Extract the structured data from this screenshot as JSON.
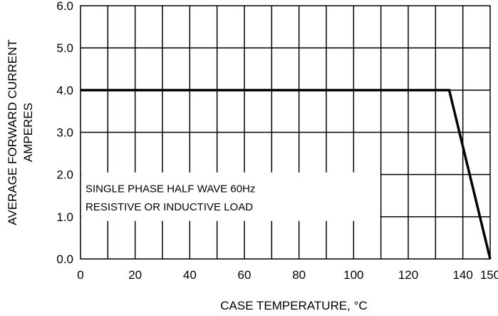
{
  "chart_data": {
    "type": "line",
    "xlabel": "CASE TEMPERATURE, °C",
    "ylabel_lines": [
      "AVERAGE FORWARD CURRENT",
      "AMPERES"
    ],
    "xlim": [
      0,
      150
    ],
    "ylim": [
      0,
      6
    ],
    "x_ticks": [
      0,
      20,
      40,
      60,
      80,
      100,
      120,
      140,
      150
    ],
    "x_tick_labels": [
      "0",
      "20",
      "40",
      "60",
      "80",
      "100",
      "120",
      "140",
      "150"
    ],
    "y_ticks": [
      0,
      1,
      2,
      3,
      4,
      5,
      6
    ],
    "y_tick_labels": [
      "0.0",
      "1.0",
      "2.0",
      "3.0",
      "4.0",
      "5.0",
      "6.0"
    ],
    "grid": true,
    "series": [
      {
        "x": [
          0,
          135,
          150
        ],
        "y": [
          4.0,
          4.0,
          0.0
        ]
      }
    ],
    "annotation_lines": [
      "SINGLE PHASE HALF WAVE  60Hz",
      "RESISTIVE OR INDUCTIVE LOAD"
    ]
  }
}
